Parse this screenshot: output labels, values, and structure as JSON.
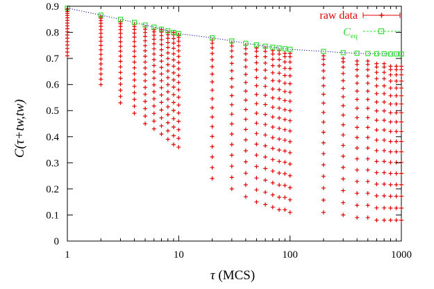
{
  "chart_data": {
    "type": "scatter",
    "title": "",
    "xlabel": "τ (MCS)",
    "ylabel": "C(τ+tw,tw)",
    "xscale": "log",
    "xlim": [
      1,
      1000
    ],
    "ylim": [
      0,
      0.9
    ],
    "xticks": [
      1,
      10,
      100,
      1000
    ],
    "yticks": [
      0,
      0.1,
      0.2,
      0.3,
      0.4,
      0.5,
      0.6,
      0.7,
      0.8,
      0.9
    ],
    "grid": false,
    "legend_position": "top-right",
    "fit_curve": {
      "style": "dotted",
      "color": "#00008b"
    },
    "series": [
      {
        "name": "raw data",
        "color": "#e00000",
        "marker": "plus",
        "x": [
          1,
          2,
          3,
          4,
          5,
          6,
          7,
          8,
          9,
          10,
          20,
          30,
          40,
          50,
          60,
          70,
          80,
          90,
          100,
          200,
          300,
          400,
          500,
          600,
          700,
          800,
          900,
          1000
        ],
        "y_top": [
          0.89,
          0.86,
          0.84,
          0.83,
          0.82,
          0.81,
          0.81,
          0.8,
          0.8,
          0.79,
          0.77,
          0.76,
          0.75,
          0.74,
          0.74,
          0.73,
          0.73,
          0.72,
          0.72,
          0.71,
          0.7,
          0.69,
          0.69,
          0.68,
          0.68,
          0.67,
          0.67,
          0.67
        ],
        "y_bottom": [
          0.71,
          0.6,
          0.53,
          0.49,
          0.45,
          0.43,
          0.41,
          0.39,
          0.37,
          0.36,
          0.24,
          0.2,
          0.17,
          0.15,
          0.14,
          0.13,
          0.12,
          0.12,
          0.11,
          0.11,
          0.1,
          0.09,
          0.09,
          0.08,
          0.08,
          0.08,
          0.08,
          0.08
        ],
        "points_per_x": 18
      },
      {
        "name": "C_eq",
        "color": "#33dd33",
        "marker": "open-square",
        "x": [
          1,
          2,
          3,
          4,
          5,
          6,
          7,
          8,
          9,
          10,
          20,
          30,
          40,
          50,
          60,
          70,
          80,
          90,
          100,
          200,
          300,
          400,
          500,
          600,
          700,
          800,
          900,
          1000
        ],
        "y": [
          0.893,
          0.866,
          0.85,
          0.838,
          0.828,
          0.82,
          0.812,
          0.806,
          0.8,
          0.795,
          0.779,
          0.767,
          0.758,
          0.752,
          0.747,
          0.743,
          0.74,
          0.737,
          0.735,
          0.727,
          0.722,
          0.72,
          0.719,
          0.718,
          0.718,
          0.717,
          0.717,
          0.717
        ]
      }
    ]
  },
  "legend": {
    "raw_label": "raw data",
    "ceq_label_main": "C",
    "ceq_label_sub": "eq"
  },
  "axes": {
    "x_title_symbol": "τ",
    "x_title_unit": " (MCS)",
    "y_title": "C(τ+tw,tw)",
    "x_tick_labels": [
      "1",
      "10",
      "100",
      "1000"
    ],
    "y_tick_labels": [
      "0",
      "0.1",
      "0.2",
      "0.3",
      "0.4",
      "0.5",
      "0.6",
      "0.7",
      "0.8",
      "0.9"
    ]
  },
  "colors": {
    "raw": "#e00000",
    "ceq": "#33dd33",
    "fit": "#00008b",
    "axis": "#000000"
  }
}
